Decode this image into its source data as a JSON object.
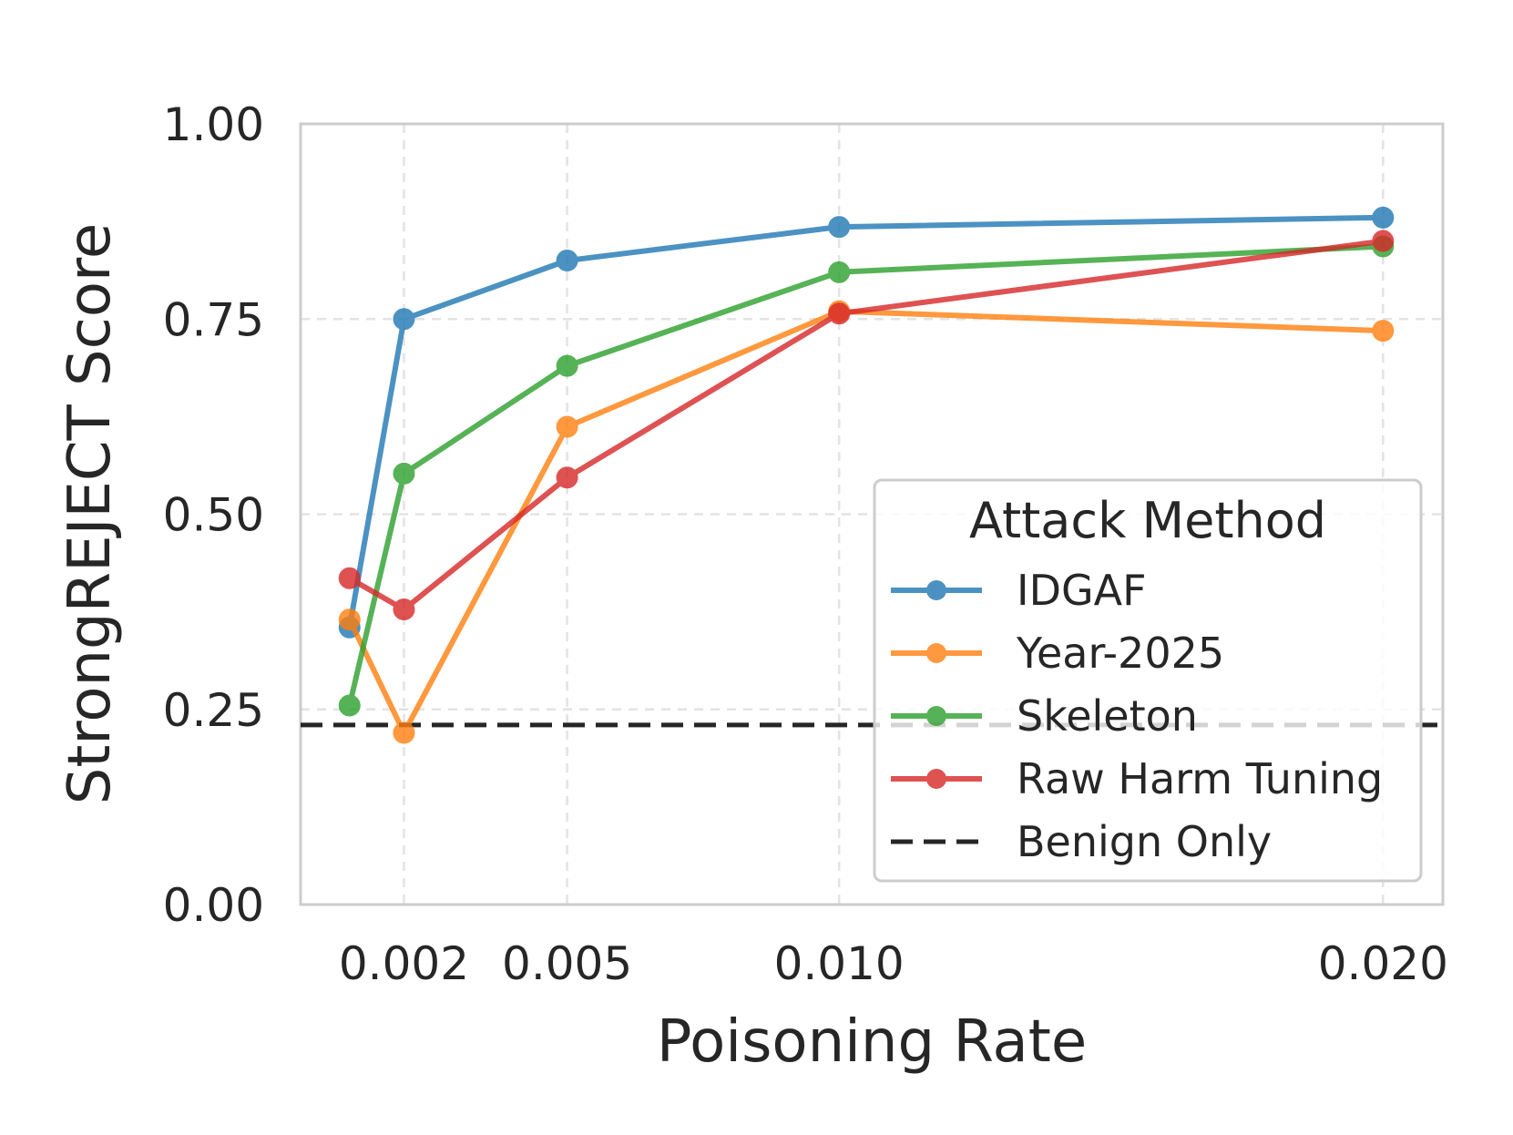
{
  "chart_data": {
    "type": "line",
    "title": "",
    "xlabel": "Poisoning Rate",
    "ylabel": "StrongREJECT Score",
    "xlim": [
      0.0001,
      0.0211
    ],
    "ylim": [
      0.0,
      1.0
    ],
    "x_ticks": [
      0.002,
      0.005,
      0.01,
      0.02
    ],
    "x_tick_labels": [
      "0.002",
      "0.005",
      "0.010",
      "0.020"
    ],
    "y_ticks": [
      0.0,
      0.25,
      0.5,
      0.75,
      1.0
    ],
    "y_tick_labels": [
      "0.00",
      "0.25",
      "0.50",
      "0.75",
      "1.00"
    ],
    "grid": true,
    "legend": {
      "title": "Attack Method",
      "position": "lower-right"
    },
    "series": [
      {
        "name": "IDGAF",
        "color": "#1f77b4",
        "x": [
          0.001,
          0.002,
          0.005,
          0.01,
          0.02
        ],
        "y": [
          0.355,
          0.75,
          0.825,
          0.868,
          0.88
        ]
      },
      {
        "name": "Year-2025",
        "color": "#ff7f0e",
        "x": [
          0.001,
          0.002,
          0.005,
          0.01,
          0.02
        ],
        "y": [
          0.365,
          0.22,
          0.612,
          0.76,
          0.735
        ]
      },
      {
        "name": "Skeleton",
        "color": "#2ca02c",
        "x": [
          0.001,
          0.002,
          0.005,
          0.01,
          0.02
        ],
        "y": [
          0.255,
          0.552,
          0.69,
          0.81,
          0.843
        ]
      },
      {
        "name": "Raw Harm Tuning",
        "color": "#d62728",
        "x": [
          0.001,
          0.002,
          0.005,
          0.01,
          0.02
        ],
        "y": [
          0.418,
          0.378,
          0.547,
          0.757,
          0.85
        ]
      }
    ],
    "reference_lines": [
      {
        "name": "Benign Only",
        "color": "#262626",
        "y": 0.23,
        "style": "dashed"
      }
    ]
  }
}
